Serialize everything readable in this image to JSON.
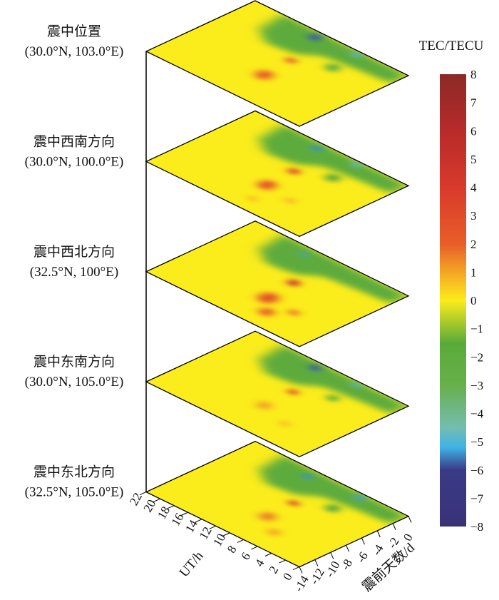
{
  "chart_data": {
    "type": "heatmap",
    "layout": "stacked 3D slices",
    "xlabel": "震前天数/d",
    "ylabel": "UT/h",
    "colorbar_title": "TEC/TECU",
    "day_ticks": [
      "-14",
      "-12",
      "-10",
      "-8",
      "-6",
      "-4",
      "-2",
      "0"
    ],
    "ut_ticks": [
      "0",
      "2",
      "4",
      "6",
      "8",
      "10",
      "12",
      "14",
      "16",
      "18",
      "20",
      "22"
    ],
    "colorbar_ticks": [
      "8",
      "7",
      "6",
      "5",
      "4",
      "3",
      "2",
      "1",
      "0",
      "−1",
      "−2",
      "−3",
      "−4",
      "−5",
      "−6",
      "−7",
      "−8"
    ],
    "xlim": [
      -14,
      0
    ],
    "ylim": [
      0,
      22
    ],
    "clim": [
      -8,
      8
    ],
    "colormap": [
      {
        "v": -8,
        "c": "#3a3278"
      },
      {
        "v": -6,
        "c": "#3a3a86"
      },
      {
        "v": -5.2,
        "c": "#3fb2e6"
      },
      {
        "v": -4.5,
        "c": "#74bdb0"
      },
      {
        "v": -3,
        "c": "#68b04a"
      },
      {
        "v": -1.5,
        "c": "#5aaa3a"
      },
      {
        "v": 0,
        "c": "#fbec1c"
      },
      {
        "v": 1,
        "c": "#f4a624"
      },
      {
        "v": 2,
        "c": "#e85d29"
      },
      {
        "v": 4,
        "c": "#d83a2b"
      },
      {
        "v": 6,
        "c": "#b82a2a"
      },
      {
        "v": 8,
        "c": "#8b2a26"
      }
    ],
    "background_value": 0,
    "slices": [
      {
        "title": "震中位置",
        "coords": "(30.0°N, 103.0°E)",
        "features": [
          {
            "day": -1.0,
            "ut": 12.3,
            "value": -7,
            "r": 5
          },
          {
            "day": -0.6,
            "ut": 6.8,
            "value": -5.5,
            "r": 4
          },
          {
            "day": -3.9,
            "ut": 6.5,
            "value": -2.5,
            "r": 5
          },
          {
            "day": -5.7,
            "ut": 10.5,
            "value": 4,
            "r": 4
          },
          {
            "day": -9.4,
            "ut": 10.2,
            "value": 2.5,
            "r": 7
          }
        ]
      },
      {
        "title": "震中西南方向",
        "coords": "(30.0°N, 100.0°E)",
        "features": [
          {
            "day": -1.0,
            "ut": 12.0,
            "value": -6.5,
            "r": 4
          },
          {
            "day": -0.6,
            "ut": 6.8,
            "value": -5,
            "r": 4
          },
          {
            "day": -3.9,
            "ut": 6.5,
            "value": -1.5,
            "r": 5
          },
          {
            "day": -5.6,
            "ut": 10.2,
            "value": 5,
            "r": 4.5
          },
          {
            "day": -9.2,
            "ut": 10.0,
            "value": 3,
            "r": 7
          },
          {
            "day": -9.8,
            "ut": 6.0,
            "value": 1,
            "r": 4
          },
          {
            "day": -12.0,
            "ut": 9.0,
            "value": 0.8,
            "r": 4
          }
        ]
      },
      {
        "title": "震中西北方向",
        "coords": "(32.5°N, 100°E)",
        "features": [
          {
            "day": -1.3,
            "ut": 13.5,
            "value": -6,
            "r": 3
          },
          {
            "day": -5.8,
            "ut": 10.0,
            "value": 6,
            "r": 5
          },
          {
            "day": -9.5,
            "ut": 9.5,
            "value": 3,
            "r": 8
          },
          {
            "day": -11.5,
            "ut": 7.5,
            "value": 2.5,
            "r": 6
          },
          {
            "day": -9.8,
            "ut": 5.5,
            "value": 2,
            "r": 4.5
          }
        ]
      },
      {
        "title": "震中东南方向",
        "coords": "(30.0°N, 105.0°E)",
        "features": [
          {
            "day": -1.0,
            "ut": 12.3,
            "value": -7,
            "r": 4.5
          },
          {
            "day": -0.6,
            "ut": 6.8,
            "value": -5.5,
            "r": 3.5
          },
          {
            "day": -3.9,
            "ut": 6.5,
            "value": -1.5,
            "r": 4
          },
          {
            "day": -5.7,
            "ut": 10.2,
            "value": 4.5,
            "r": 4
          },
          {
            "day": -9.4,
            "ut": 10.2,
            "value": 1.2,
            "r": 6
          },
          {
            "day": -10.5,
            "ut": 6.0,
            "value": 0.8,
            "r": 4
          }
        ]
      },
      {
        "title": "震中东北方向",
        "coords": "(32.5°N, 105.0°E)",
        "features": [
          {
            "day": -1.3,
            "ut": 13.0,
            "value": -6.5,
            "r": 3.5
          },
          {
            "day": -0.7,
            "ut": 6.2,
            "value": -6,
            "r": 4
          },
          {
            "day": -3.9,
            "ut": 6.5,
            "value": -1.5,
            "r": 5
          },
          {
            "day": -5.8,
            "ut": 10.0,
            "value": 5.5,
            "r": 4
          },
          {
            "day": -9.3,
            "ut": 9.8,
            "value": 1.8,
            "r": 6.5
          },
          {
            "day": -11.0,
            "ut": 7.0,
            "value": 1.2,
            "r": 5
          }
        ]
      }
    ],
    "negative_band": [
      {
        "day": 0,
        "ut": 0
      },
      {
        "day": -2.2,
        "ut": 0
      },
      {
        "day": -2.5,
        "ut": 4
      },
      {
        "day": -3.0,
        "ut": 9
      },
      {
        "day": -4.5,
        "ut": 11
      },
      {
        "day": -5.0,
        "ut": 15
      },
      {
        "day": -3.5,
        "ut": 17.5
      },
      {
        "day": 0,
        "ut": 18
      }
    ]
  }
}
